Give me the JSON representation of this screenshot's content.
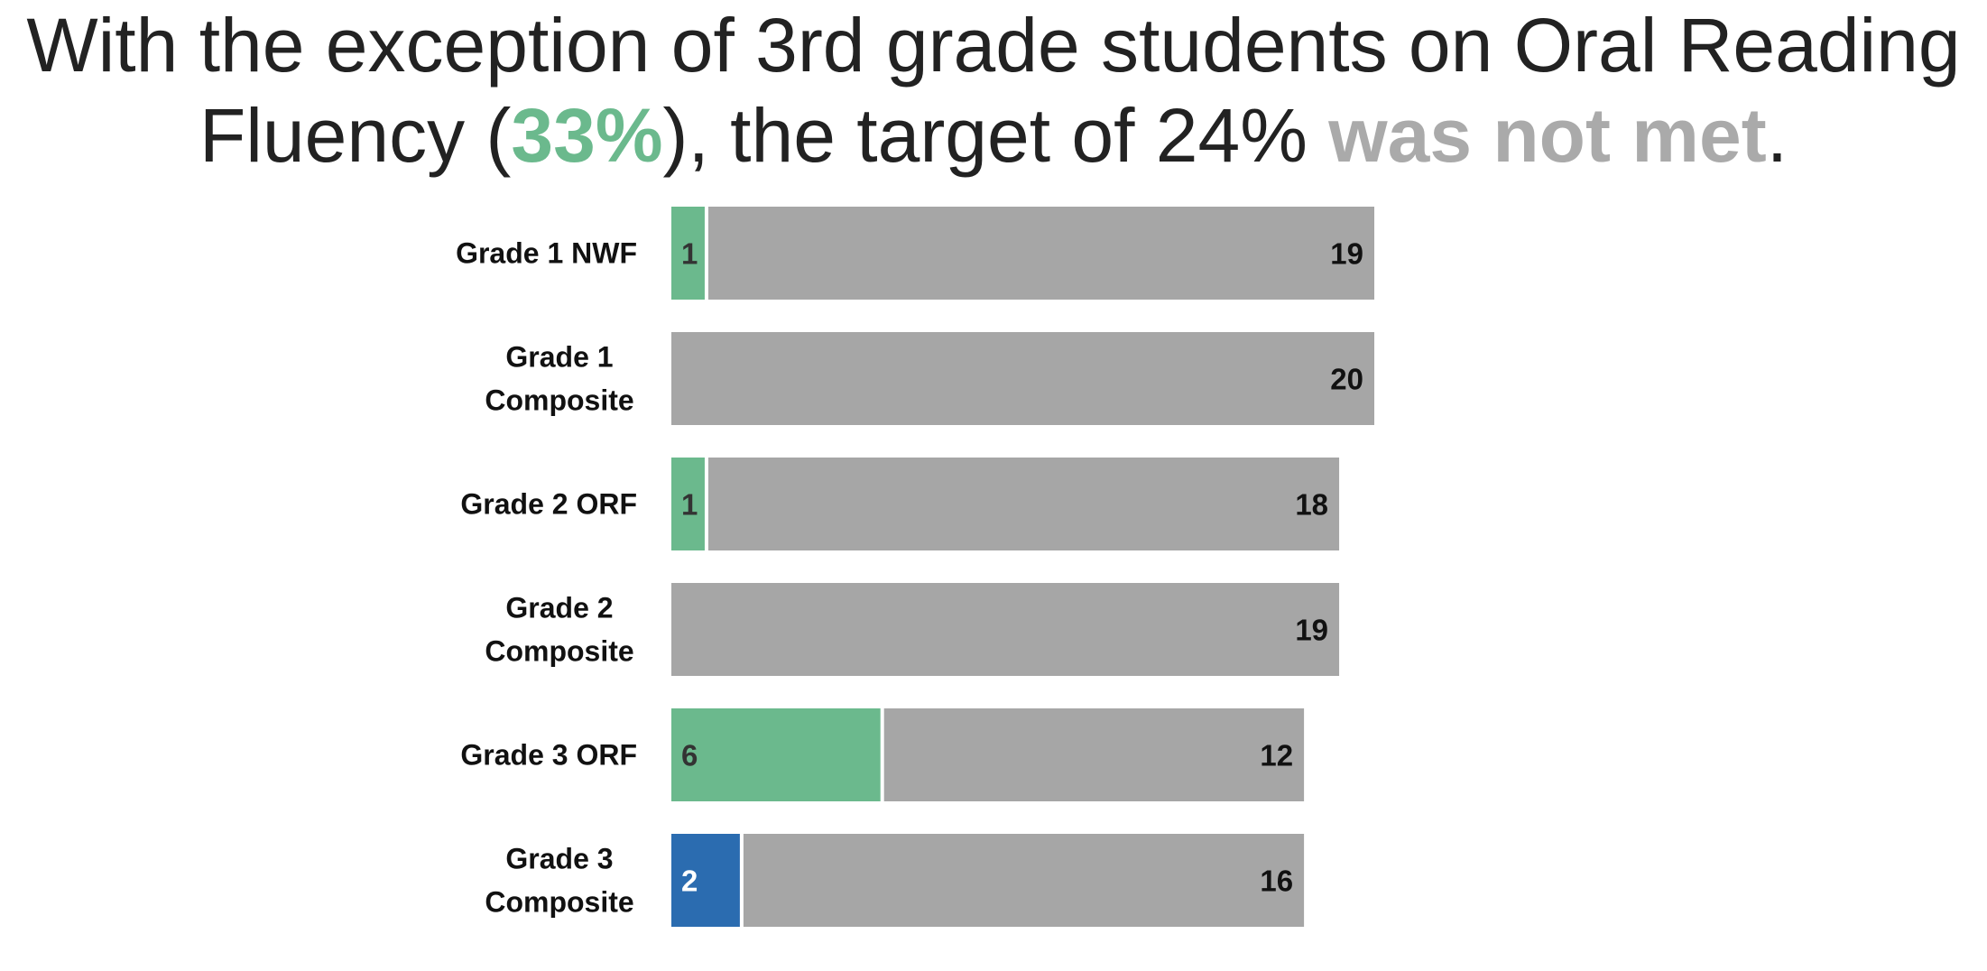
{
  "title": {
    "line1": "With the exception of 3rd grade students on Oral Reading",
    "line2_pre": "Fluency (",
    "line2_highlight": "33%",
    "line2_mid": "), the target of 24% ",
    "line2_emph": "was not met",
    "line2_end": "."
  },
  "colors": {
    "met": "#6bb98d",
    "not_met": "#a6a6a6",
    "highlight_blue": "#2b6cb0",
    "title_text": "#222222"
  },
  "chart_data": {
    "type": "bar",
    "orientation": "horizontal",
    "stacked": true,
    "categories": [
      [
        "Grade 1 NWF"
      ],
      [
        "Grade 1",
        "Composite"
      ],
      [
        "Grade 2 ORF"
      ],
      [
        "Grade 2",
        "Composite"
      ],
      [
        "Grade 3 ORF"
      ],
      [
        "Grade 3",
        "Composite"
      ]
    ],
    "series": [
      {
        "values": [
          1,
          0,
          1,
          0,
          6,
          2
        ],
        "colors": [
          "#6bb98d",
          "#6bb98d",
          "#6bb98d",
          "#6bb98d",
          "#6bb98d",
          "#2b6cb0"
        ],
        "label_colors": [
          "#333333",
          "#333333",
          "#333333",
          "#333333",
          "#333333",
          "#ffffff"
        ]
      },
      {
        "values": [
          19,
          20,
          18,
          19,
          12,
          16
        ],
        "color": "#a6a6a6",
        "label_color": "#111111"
      }
    ],
    "xlim": [
      0,
      20
    ],
    "grid": false,
    "legend": "none"
  }
}
